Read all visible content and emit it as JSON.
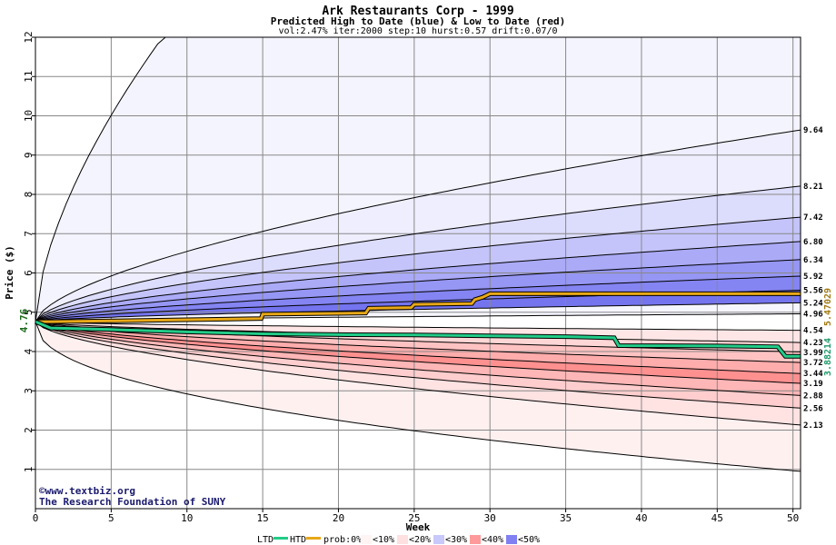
{
  "chart_data": {
    "type": "area",
    "title": "Ark Restaurants Corp - 1999",
    "subtitle": "Predicted High to Date (blue) &  Low to Date (red)",
    "params": "vol:2.47% iter:2000 step:10 hurst:0.57 drift:0.07/0",
    "xlabel": "Week",
    "ylabel": "Price ($)",
    "xlim": [
      0,
      50.5
    ],
    "ylim": [
      0,
      12
    ],
    "x_ticks": [
      0,
      5,
      10,
      15,
      20,
      25,
      30,
      35,
      40,
      45,
      50
    ],
    "y_ticks": [
      1,
      2,
      3,
      4,
      5,
      6,
      7,
      8,
      9,
      10,
      11,
      12
    ],
    "grid": true,
    "start_price": 4.76,
    "start_label": "4.76",
    "htd_final_label": "5.47029",
    "ltd_final_label": "3.88214",
    "high_quantiles": [
      {
        "label": "9.64",
        "end": 9.64,
        "color": "#eeeeff"
      },
      {
        "label": "8.21",
        "end": 8.21,
        "color": "#dcdcfc"
      },
      {
        "label": "7.42",
        "end": 7.42,
        "color": "#c4c4fa"
      },
      {
        "label": "6.80",
        "end": 6.8,
        "color": "#aaaaf7"
      },
      {
        "label": "6.34",
        "end": 6.34,
        "color": "#9696f4"
      },
      {
        "label": "5.92",
        "end": 5.92,
        "color": "#8484f2"
      },
      {
        "label": "5.56",
        "end": 5.56,
        "color": "#7474ef"
      }
    ],
    "low_quantiles": [
      {
        "label": "4.54",
        "end": 4.54,
        "color": "#fff4f4"
      },
      {
        "label": "4.23",
        "end": 4.23,
        "color": "#ffe6e6"
      },
      {
        "label": "3.99",
        "end": 3.99,
        "color": "#ffd6d6"
      },
      {
        "label": "3.72",
        "end": 3.72,
        "color": "#ffc2c2"
      },
      {
        "label": "3.44",
        "end": 3.44,
        "color": "#ffacac"
      },
      {
        "label": "3.19",
        "end": 3.19,
        "color": "#ff9090"
      },
      {
        "label": "2.88",
        "end": 2.88,
        "color": "#ffb6b6"
      },
      {
        "label": "2.56",
        "end": 2.56,
        "color": "#ffcdcd"
      },
      {
        "label": "2.13",
        "end": 2.13,
        "color": "#ffe2e2"
      }
    ],
    "outer_low_end": 0.95,
    "mid_labels": [
      {
        "label": "5.24",
        "end": 5.24
      },
      {
        "label": "4.96",
        "end": 4.96
      }
    ],
    "htd": {
      "x": [
        0,
        1,
        5,
        10,
        14.9,
        15,
        21.8,
        22,
        24.8,
        25,
        28.8,
        29,
        29.5,
        30,
        50.5
      ],
      "y": [
        4.76,
        4.76,
        4.78,
        4.81,
        4.84,
        4.95,
        4.98,
        5.1,
        5.12,
        5.2,
        5.22,
        5.32,
        5.38,
        5.47,
        5.47
      ]
    },
    "ltd": {
      "x": [
        0,
        1,
        5,
        10,
        15,
        20,
        25,
        30,
        35,
        38.2,
        38.5,
        45,
        49,
        49.5,
        50.5
      ],
      "y": [
        4.76,
        4.6,
        4.56,
        4.5,
        4.45,
        4.43,
        4.42,
        4.4,
        4.38,
        4.35,
        4.15,
        4.14,
        4.12,
        3.88,
        3.88
      ]
    },
    "legend": {
      "ltd": "LTD",
      "htd": "HTD",
      "prob": "prob:0%",
      "bins": [
        "<10%",
        "<20%",
        "<30%",
        "<40%",
        "<50%"
      ],
      "colors": [
        "#fff4f4",
        "#ffe0e0",
        "#c8c8fa",
        "#ff9a9a",
        "#8080f2"
      ]
    },
    "watermark": [
      "©www.textbiz.org",
      "The Research Foundation of SUNY"
    ]
  }
}
